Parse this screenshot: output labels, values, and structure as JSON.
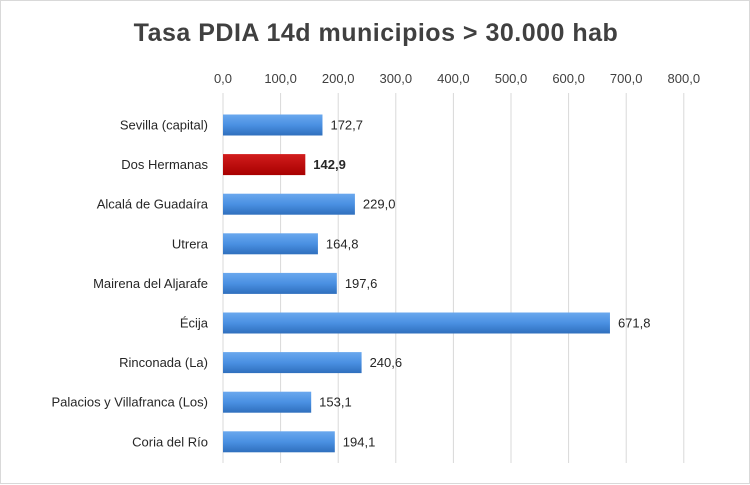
{
  "chart_data": {
    "type": "bar",
    "orientation": "horizontal",
    "title": "Tasa  PDIA  14d municipios  > 30.000 hab",
    "xlabel": "",
    "ylabel": "",
    "xlim": [
      0,
      800
    ],
    "ticks": [
      "0,0",
      "100,0",
      "200,0",
      "300,0",
      "400,0",
      "500,0",
      "600,0",
      "700,0",
      "800,0"
    ],
    "tick_values": [
      0,
      100,
      200,
      300,
      400,
      500,
      600,
      700,
      800
    ],
    "axis_position": "top",
    "grid": true,
    "categories": [
      "Sevilla (capital)",
      "Dos Hermanas",
      "Alcalá de Guadaíra",
      "Utrera",
      "Mairena del Aljarafe",
      "Écija",
      "Rinconada (La)",
      "Palacios y Villafranca (Los)",
      "Coria del Río"
    ],
    "values": [
      172.7,
      142.9,
      229.0,
      164.8,
      197.6,
      671.8,
      240.6,
      153.1,
      194.1
    ],
    "value_labels": [
      "172,7",
      "142,9",
      "229,0",
      "164,8",
      "197,6",
      "671,8",
      "240,6",
      "153,1",
      "194,1"
    ],
    "highlight_index": 1,
    "colors": {
      "bar": "#4a90e2",
      "highlight": "#c00000",
      "grid": "#d9d9d9"
    }
  }
}
